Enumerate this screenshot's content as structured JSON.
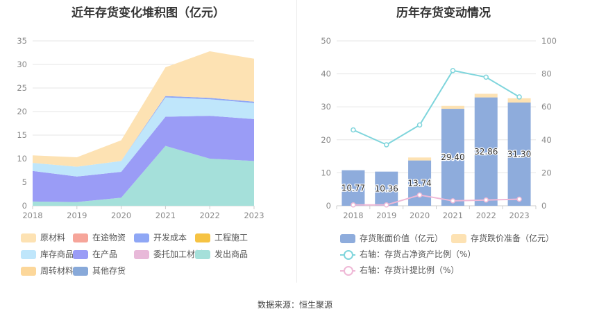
{
  "left_title": "近年存货变化堆积图（亿元）",
  "right_title": "历年存货变动情况",
  "footer": "数据来源：恒生聚源",
  "chart_data": [
    {
      "type": "area",
      "stacked": true,
      "title": "近年存货变化堆积图（亿元）",
      "x": [
        "2018",
        "2019",
        "2020",
        "2021",
        "2022",
        "2023"
      ],
      "ylim": [
        0,
        35
      ],
      "yticks": [
        "0",
        "5",
        "10",
        "15",
        "20",
        "25",
        "30",
        "35"
      ],
      "grid": true,
      "legend_position": "bottom",
      "series": [
        {
          "name": "其他存货",
          "color": "#88a9d9",
          "values": [
            0,
            0,
            0,
            0,
            0,
            0
          ]
        },
        {
          "name": "发出商品",
          "color": "#a5e0da",
          "values": [
            0.9,
            0.8,
            1.7,
            12.7,
            10.0,
            9.5
          ]
        },
        {
          "name": "在产品",
          "color": "#9a9cf6",
          "values": [
            6.5,
            5.4,
            5.5,
            6.2,
            9.1,
            8.9
          ]
        },
        {
          "name": "库存商品",
          "color": "#bfe6fb",
          "values": [
            1.7,
            2.1,
            2.3,
            4.1,
            3.5,
            3.4
          ]
        },
        {
          "name": "开发成本",
          "color": "#8fa7f5",
          "values": [
            0,
            0,
            0,
            0.3,
            0.3,
            0.3
          ]
        },
        {
          "name": "原材料",
          "color": "#fde2b3",
          "values": [
            1.6,
            2.0,
            4.4,
            6.1,
            9.9,
            9.1
          ]
        },
        {
          "name": "在途物资",
          "color": "#f6a59a",
          "values": [
            0,
            0,
            0,
            0,
            0,
            0
          ]
        },
        {
          "name": "工程施工",
          "color": "#f6c343",
          "values": [
            0,
            0,
            0,
            0,
            0,
            0
          ]
        },
        {
          "name": "委托加工材料",
          "color": "#e8b9d9",
          "values": [
            0,
            0,
            0,
            0,
            0,
            0
          ]
        },
        {
          "name": "周转材料",
          "color": "#fcd79a",
          "values": [
            0,
            0,
            0,
            0,
            0,
            0
          ]
        }
      ],
      "legend": [
        [
          "原材料",
          "在途物资",
          "开发成本",
          "工程施工"
        ],
        [
          "库存商品",
          "在产品",
          "委托加工材料",
          "发出商品"
        ],
        [
          "周转材料",
          "其他存货"
        ]
      ]
    },
    {
      "type": "bar",
      "stacked": true,
      "title": "历年存货变动情况",
      "categories": [
        "2018",
        "2019",
        "2020",
        "2021",
        "2022",
        "2023"
      ],
      "ylim": [
        0,
        50
      ],
      "yticks": [
        "0",
        "10",
        "20",
        "30",
        "40",
        "50"
      ],
      "y2lim": [
        0,
        100
      ],
      "y2ticks": [
        "0",
        "20",
        "40",
        "60",
        "80",
        "100"
      ],
      "grid": true,
      "legend_position": "bottom",
      "series": [
        {
          "name": "存货账面价值（亿元）",
          "color": "#8eacdc",
          "values": [
            10.77,
            10.36,
            13.74,
            29.4,
            32.86,
            31.3
          ],
          "labels": [
            "10.77",
            "10.36",
            "13.74",
            "29.40",
            "32.86",
            "31.30"
          ]
        },
        {
          "name": "存货跌价准备（亿元）",
          "color": "#fde2b3",
          "values": [
            0,
            0,
            0.9,
            0.9,
            1.1,
            1.3
          ]
        }
      ],
      "lines": [
        {
          "name": "右轴：存货占净资产比例（%）",
          "color": "#7fd5dc",
          "axis": "right",
          "values": [
            46,
            37,
            49,
            82,
            78,
            66
          ]
        },
        {
          "name": "右轴：存货计提比例（%）",
          "color": "#efb8d6",
          "axis": "right",
          "values": [
            0.5,
            0.5,
            6.5,
            3,
            3.5,
            4
          ]
        }
      ]
    }
  ]
}
